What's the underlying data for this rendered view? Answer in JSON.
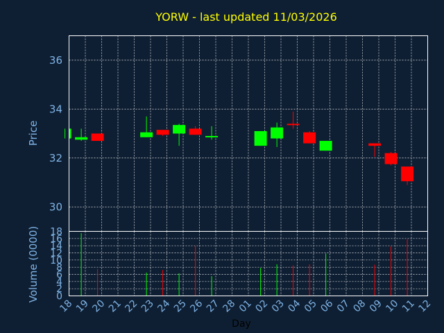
{
  "chart_data": [
    {
      "type": "candlestick",
      "title": "YORW - last updated 11/03/2026",
      "xlabel": "",
      "ylabel": "Price",
      "ylim": [
        29,
        37
      ],
      "yticks": [
        30,
        32,
        34,
        36
      ],
      "colors": {
        "up": "#00ff00",
        "down": "#ff0000",
        "background": "#0f1f33",
        "title": "#ffff00",
        "axis_text": "#7fb4e6"
      },
      "grid": true,
      "x_day_labels": [
        "18",
        "19",
        "20",
        "21",
        "22",
        "23",
        "24",
        "25",
        "26",
        "27",
        "28",
        "01",
        "02",
        "03",
        "04",
        "05",
        "06",
        "07",
        "08",
        "09",
        "10",
        "11",
        "12"
      ],
      "candles": [
        {
          "day_index": -0.25,
          "open": 32.8,
          "high": 33.2,
          "low": 32.8,
          "close": 33.2
        },
        {
          "day_index": 0.75,
          "open": 32.75,
          "high": 33.2,
          "low": 32.7,
          "close": 32.85
        },
        {
          "day_index": 1.75,
          "open": 33.0,
          "high": 33.0,
          "low": 32.7,
          "close": 32.7
        },
        {
          "day_index": 4.75,
          "open": 32.85,
          "high": 33.7,
          "low": 32.85,
          "close": 33.05
        },
        {
          "day_index": 5.75,
          "open": 33.15,
          "high": 33.15,
          "low": 32.9,
          "close": 32.95
        },
        {
          "day_index": 6.75,
          "open": 33.0,
          "high": 33.4,
          "low": 32.5,
          "close": 33.35
        },
        {
          "day_index": 7.75,
          "open": 33.2,
          "high": 33.3,
          "low": 32.95,
          "close": 32.95
        },
        {
          "day_index": 8.75,
          "open": 32.85,
          "high": 33.3,
          "low": 32.75,
          "close": 32.9
        },
        {
          "day_index": 11.75,
          "open": 32.5,
          "high": 33.1,
          "low": 32.5,
          "close": 33.1
        },
        {
          "day_index": 12.75,
          "open": 32.8,
          "high": 33.45,
          "low": 32.45,
          "close": 33.25
        },
        {
          "day_index": 13.75,
          "open": 33.4,
          "high": 33.9,
          "low": 33.2,
          "close": 33.35
        },
        {
          "day_index": 14.75,
          "open": 33.05,
          "high": 33.1,
          "low": 32.6,
          "close": 32.6
        },
        {
          "day_index": 15.75,
          "open": 32.3,
          "high": 32.7,
          "low": 32.3,
          "close": 32.7
        },
        {
          "day_index": 18.75,
          "open": 32.6,
          "high": 32.6,
          "low": 32.05,
          "close": 32.5
        },
        {
          "day_index": 19.75,
          "open": 32.2,
          "high": 32.25,
          "low": 31.7,
          "close": 31.75
        },
        {
          "day_index": 20.75,
          "open": 31.65,
          "high": 31.65,
          "low": 30.9,
          "close": 31.05
        }
      ]
    },
    {
      "type": "bar",
      "xlabel": "Day",
      "ylabel": "Volume (0000)",
      "ylim": [
        0,
        18
      ],
      "yticks": [
        0,
        2,
        4,
        6,
        8,
        10,
        12,
        14,
        16,
        18
      ],
      "bars": [
        {
          "day_index": 0.75,
          "value": 17.5,
          "direction": "up"
        },
        {
          "day_index": 1.75,
          "value": 7.5,
          "direction": "down"
        },
        {
          "day_index": 4.75,
          "value": 6.5,
          "direction": "up"
        },
        {
          "day_index": 5.75,
          "value": 7.2,
          "direction": "down"
        },
        {
          "day_index": 6.75,
          "value": 6.3,
          "direction": "up"
        },
        {
          "day_index": 7.75,
          "value": 14.0,
          "direction": "down"
        },
        {
          "day_index": 8.75,
          "value": 5.5,
          "direction": "up"
        },
        {
          "day_index": 11.75,
          "value": 7.8,
          "direction": "up"
        },
        {
          "day_index": 12.75,
          "value": 8.8,
          "direction": "up"
        },
        {
          "day_index": 13.75,
          "value": 8.5,
          "direction": "down"
        },
        {
          "day_index": 14.75,
          "value": 8.8,
          "direction": "down"
        },
        {
          "day_index": 15.75,
          "value": 11.8,
          "direction": "up"
        },
        {
          "day_index": 18.75,
          "value": 8.7,
          "direction": "down"
        },
        {
          "day_index": 19.75,
          "value": 13.8,
          "direction": "down"
        },
        {
          "day_index": 20.75,
          "value": 15.8,
          "direction": "down"
        }
      ]
    }
  ]
}
